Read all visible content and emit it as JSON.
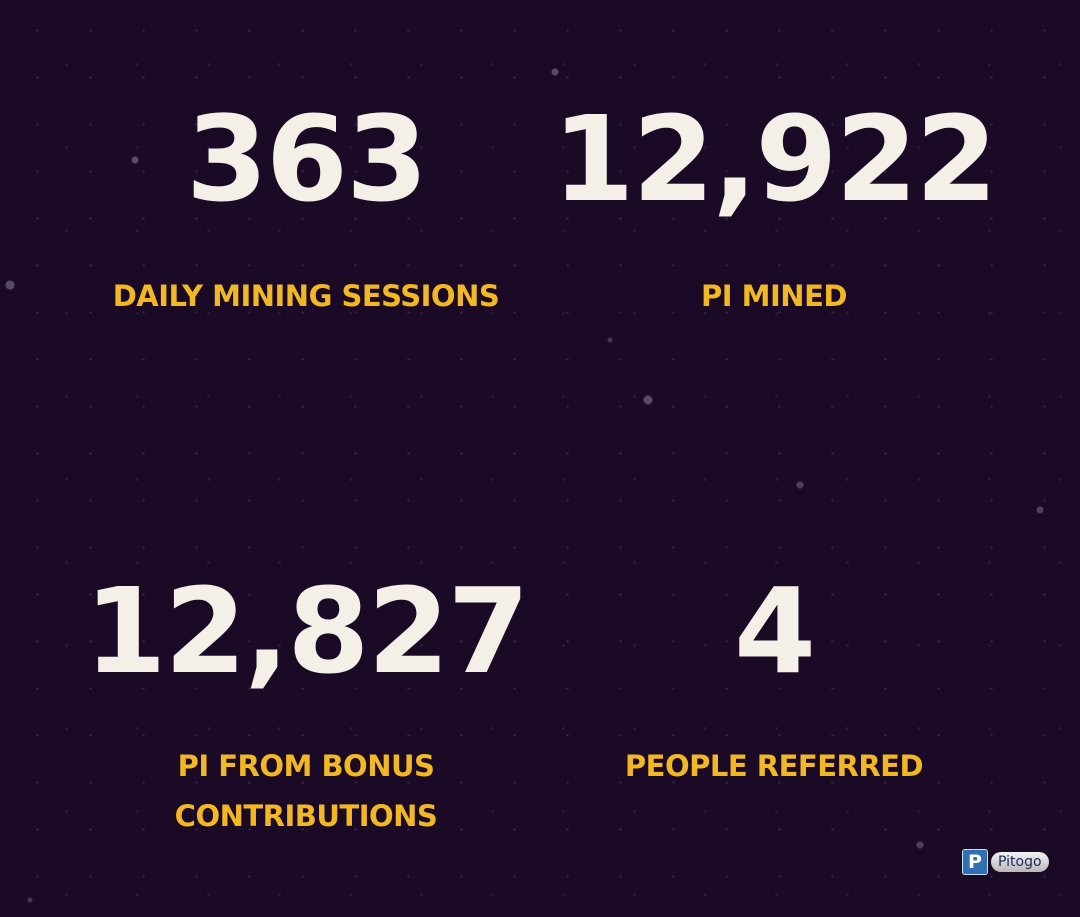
{
  "stats": [
    {
      "value": "363",
      "label": "DAILY MINING SESSIONS"
    },
    {
      "value": "12,922",
      "label": "PI MINED"
    },
    {
      "value": "12,827",
      "label": "PI FROM BONUS CONTRIBUTIONS"
    },
    {
      "value": "4",
      "label": "PEOPLE REFERRED"
    }
  ],
  "watermark": {
    "icon": "P",
    "text": "Pitogo"
  }
}
